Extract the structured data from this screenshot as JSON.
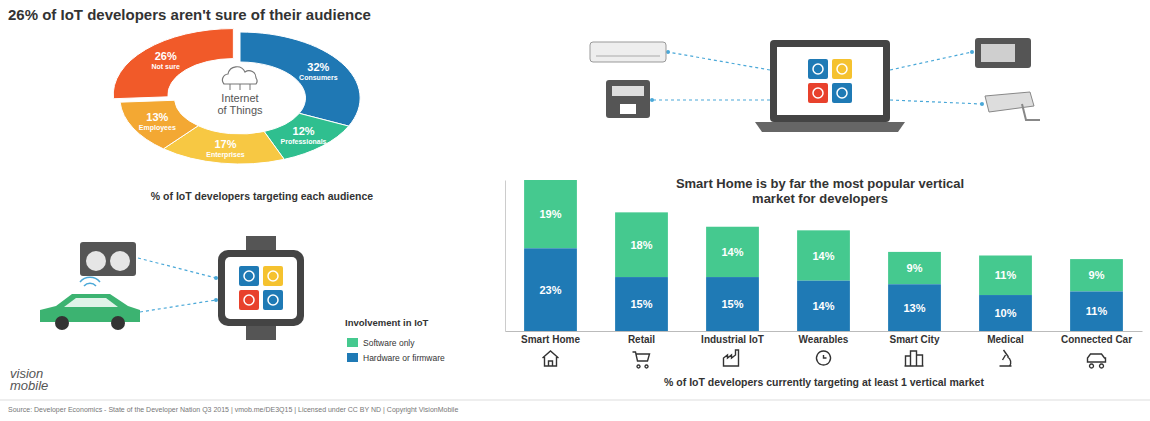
{
  "chart_data": [
    {
      "type": "donut",
      "title": "26% of IoT developers aren't sure of their audience",
      "subtitle": "% of IoT developers targeting each audience",
      "annotations": [
        "Internet of Things"
      ],
      "categories": [
        "Consumers",
        "Professionals",
        "Enterprises",
        "Employees",
        "Not sure"
      ],
      "values": [
        32,
        12,
        17,
        13,
        26
      ],
      "value_labels": [
        "32%",
        "12%",
        "17%",
        "13%",
        "26%"
      ],
      "colors": [
        "#1f78b4",
        "#2fbf8f",
        "#f7c843",
        "#f3a833",
        "#f15a29"
      ],
      "data_labels": true
    },
    {
      "type": "bar",
      "stacked": true,
      "title": "Smart Home is by far the most popular vertical market for developers",
      "xlabel": "% of IoT developers currently targeting at least 1 vertical market",
      "categories": [
        "Smart Home",
        "Retail",
        "Industrial IoT",
        "Wearables",
        "Smart City",
        "Medical",
        "Connected Car"
      ],
      "series": [
        {
          "name": "Software only",
          "color": "#45c98f",
          "values": [
            19,
            18,
            14,
            14,
            9,
            11,
            9
          ],
          "value_labels": [
            "19%",
            "18%",
            "14%",
            "14%",
            "9%",
            "11%",
            "9%"
          ]
        },
        {
          "name": "Hardware or firmware",
          "color": "#1f7ab5",
          "values": [
            23,
            15,
            15,
            14,
            13,
            10,
            11
          ],
          "value_labels": [
            "23%",
            "15%",
            "15%",
            "14%",
            "13%",
            "10%",
            "11%"
          ]
        }
      ],
      "ylim": [
        0,
        42
      ],
      "yticks": [],
      "tick_labels": "x",
      "data_labels": true,
      "legend": "left",
      "legend_title": "Involvement in IoT"
    }
  ],
  "footer": {
    "logo": "vision mobile",
    "source": "Source: Developer Economics - State of the Developer Nation Q3 2015 | vmob.me/DE3Q15 | Licensed under CC BY ND | Copyright VisionMobile"
  }
}
